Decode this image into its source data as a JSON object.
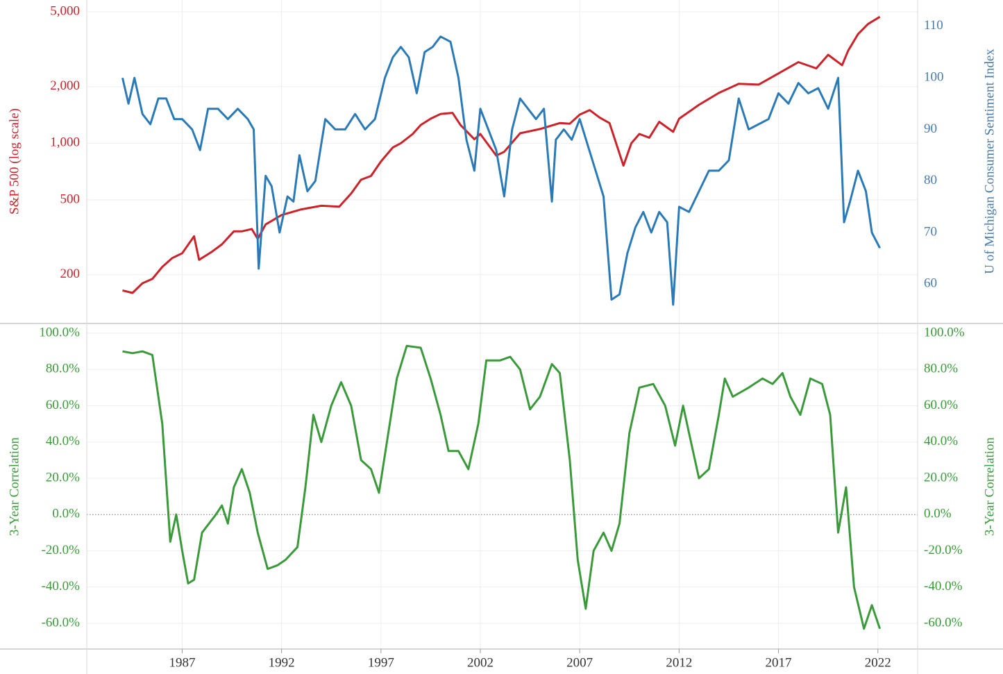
{
  "chart_data": [
    {
      "type": "line",
      "ylabel": "S&P 500 (log scale)",
      "y2label": "U of Michigan Consumer Sentiment Index",
      "yscale": "log",
      "xlim": [
        1982.2,
        2024
      ],
      "ylim": [
        111,
        5775
      ],
      "yticks": [
        200,
        500,
        {
          "value": 1000,
          "label": "1,000"
        },
        {
          "value": 2000,
          "label": "2,000"
        },
        {
          "value": 5000,
          "label": "5,000"
        }
      ],
      "y2lim": [
        52.5,
        115.1
      ],
      "y2ticks": [
        60,
        70,
        80,
        90,
        100,
        110
      ],
      "grid": true,
      "series": [
        {
          "name": "S&P 500",
          "color": "#cc2229",
          "axis": "y",
          "x": [
            1984,
            1984.5,
            1985,
            1985.5,
            1986,
            1986.5,
            1987,
            1987.6,
            1987.85,
            1988.5,
            1989,
            1989.6,
            1990,
            1990.5,
            1990.8,
            1991.2,
            1992,
            1993,
            1994,
            1994.9,
            1995.5,
            1996,
            1996.5,
            1997,
            1997.6,
            1998,
            1998.6,
            1999,
            1999.5,
            2000,
            2000.6,
            2001,
            2001.7,
            2002,
            2002.8,
            2003.2,
            2004,
            2005,
            2006,
            2006.5,
            2007,
            2007.5,
            2008,
            2008.5,
            2009.2,
            2009.6,
            2010,
            2010.5,
            2011,
            2011.7,
            2012,
            2013,
            2014,
            2015,
            2016,
            2017,
            2018,
            2018.9,
            2019.5,
            2020.2,
            2020.5,
            2021,
            2021.5,
            2022.1
          ],
          "values": [
            165,
            160,
            180,
            190,
            220,
            245,
            260,
            320,
            240,
            265,
            290,
            340,
            340,
            350,
            310,
            370,
            415,
            445,
            465,
            460,
            540,
            640,
            670,
            800,
            950,
            1000,
            1120,
            1250,
            1350,
            1430,
            1450,
            1250,
            1050,
            1120,
            860,
            900,
            1130,
            1190,
            1280,
            1270,
            1420,
            1500,
            1370,
            1280,
            760,
            1000,
            1120,
            1070,
            1300,
            1150,
            1350,
            1600,
            1850,
            2070,
            2050,
            2350,
            2700,
            2500,
            2950,
            2600,
            3100,
            3800,
            4300,
            4700
          ]
        },
        {
          "name": "U of Michigan Consumer Sentiment Index",
          "color": "#2a7ab8",
          "axis": "y2",
          "x": [
            1984,
            1984.3,
            1984.6,
            1985,
            1985.4,
            1985.8,
            1986.2,
            1986.6,
            1987,
            1987.5,
            1987.9,
            1988.3,
            1988.8,
            1989.3,
            1989.8,
            1990.3,
            1990.6,
            1990.85,
            1991.2,
            1991.5,
            1991.9,
            1992.3,
            1992.6,
            1992.9,
            1993.3,
            1993.7,
            1994.2,
            1994.7,
            1995.2,
            1995.7,
            1996.2,
            1996.7,
            1997.2,
            1997.6,
            1998,
            1998.4,
            1998.8,
            1999.2,
            1999.6,
            2000,
            2000.5,
            2000.9,
            2001.3,
            2001.7,
            2002,
            2002.4,
            2002.8,
            2003.2,
            2003.6,
            2004,
            2004.4,
            2004.8,
            2005.2,
            2005.6,
            2005.8,
            2006.2,
            2006.6,
            2007,
            2007.4,
            2007.8,
            2008.2,
            2008.6,
            2009,
            2009.4,
            2009.8,
            2010.2,
            2010.6,
            2011,
            2011.4,
            2011.7,
            2012,
            2012.5,
            2013,
            2013.5,
            2014,
            2014.5,
            2015,
            2015.5,
            2016,
            2016.5,
            2017,
            2017.5,
            2018,
            2018.5,
            2019,
            2019.5,
            2020,
            2020.3,
            2020.6,
            2021,
            2021.4,
            2021.7,
            2022.1
          ],
          "values": [
            100,
            95,
            100,
            93,
            91,
            96,
            96,
            92,
            92,
            90,
            86,
            94,
            94,
            92,
            94,
            92,
            90,
            63,
            81,
            79,
            70,
            77,
            76,
            85,
            78,
            80,
            92,
            90,
            90,
            93,
            90,
            92,
            100,
            104,
            106,
            104,
            97,
            105,
            106,
            108,
            107,
            100,
            88,
            82,
            94,
            90,
            86,
            77,
            90,
            96,
            94,
            92,
            94,
            76,
            88,
            90,
            88,
            92,
            87,
            82,
            77,
            57,
            58,
            66,
            71,
            74,
            70,
            74,
            72,
            56,
            75,
            74,
            78,
            82,
            82,
            84,
            96,
            90,
            91,
            92,
            97,
            95,
            99,
            97,
            98,
            94,
            100,
            72,
            76,
            82,
            78,
            70,
            67
          ]
        }
      ]
    },
    {
      "type": "line",
      "ylabel": "3-Year Correlation",
      "xlim": [
        1982.2,
        2024
      ],
      "xticks": [
        1987,
        1992,
        1997,
        2002,
        2007,
        2012,
        2017,
        2022
      ],
      "ylim": [
        -74.2,
        105
      ],
      "yticks": [
        {
          "value": -60,
          "label": "-60.0%"
        },
        {
          "value": -40,
          "label": "-40.0%"
        },
        {
          "value": -20,
          "label": "-20.0%"
        },
        {
          "value": 0,
          "label": "0.0%"
        },
        {
          "value": 20,
          "label": "20.0%"
        },
        {
          "value": 40,
          "label": "40.0%"
        },
        {
          "value": 60,
          "label": "60.0%"
        },
        {
          "value": 80,
          "label": "80.0%"
        },
        {
          "value": 100,
          "label": "100.0%"
        }
      ],
      "grid": true,
      "series": [
        {
          "name": "3-Year Correlation",
          "color": "#3a9a3a",
          "x": [
            1984,
            1984.5,
            1985,
            1985.5,
            1986,
            1986.4,
            1986.7,
            1987,
            1987.3,
            1987.6,
            1988,
            1988.7,
            1989,
            1989.3,
            1989.6,
            1990,
            1990.4,
            1990.8,
            1991.3,
            1991.8,
            1992.2,
            1992.8,
            1993.2,
            1993.6,
            1994,
            1994.5,
            1995,
            1995.5,
            1996,
            1996.5,
            1996.9,
            1997.3,
            1997.8,
            1998.3,
            1999,
            1999.5,
            2000,
            2000.4,
            2000.9,
            2001.4,
            2001.9,
            2002.3,
            2003,
            2003.5,
            2004,
            2004.5,
            2005,
            2005.6,
            2006,
            2006.5,
            2006.9,
            2007.3,
            2007.7,
            2008.2,
            2008.6,
            2009,
            2009.5,
            2010,
            2010.7,
            2011.3,
            2011.8,
            2012.2,
            2012.6,
            2013,
            2013.5,
            2014,
            2014.3,
            2014.7,
            2015.5,
            2016.2,
            2016.7,
            2017.2,
            2017.6,
            2018.1,
            2018.6,
            2019.2,
            2019.6,
            2020,
            2020.4,
            2020.8,
            2021.3,
            2021.7,
            2022.1
          ],
          "values": [
            90,
            89,
            90,
            88,
            50,
            -15,
            0,
            -20,
            -38,
            -36,
            -10,
            0,
            5,
            -5,
            15,
            25,
            12,
            -10,
            -30,
            -28,
            -25,
            -18,
            15,
            55,
            40,
            60,
            73,
            60,
            30,
            25,
            12,
            40,
            75,
            93,
            92,
            75,
            55,
            35,
            35,
            25,
            50,
            85,
            85,
            87,
            80,
            58,
            65,
            83,
            78,
            30,
            -25,
            -52,
            -20,
            -10,
            -20,
            -5,
            45,
            70,
            72,
            60,
            38,
            60,
            40,
            20,
            25,
            55,
            75,
            65,
            70,
            75,
            72,
            78,
            65,
            55,
            75,
            72,
            55,
            -10,
            15,
            -40,
            -63,
            -50,
            -63
          ]
        }
      ]
    }
  ]
}
